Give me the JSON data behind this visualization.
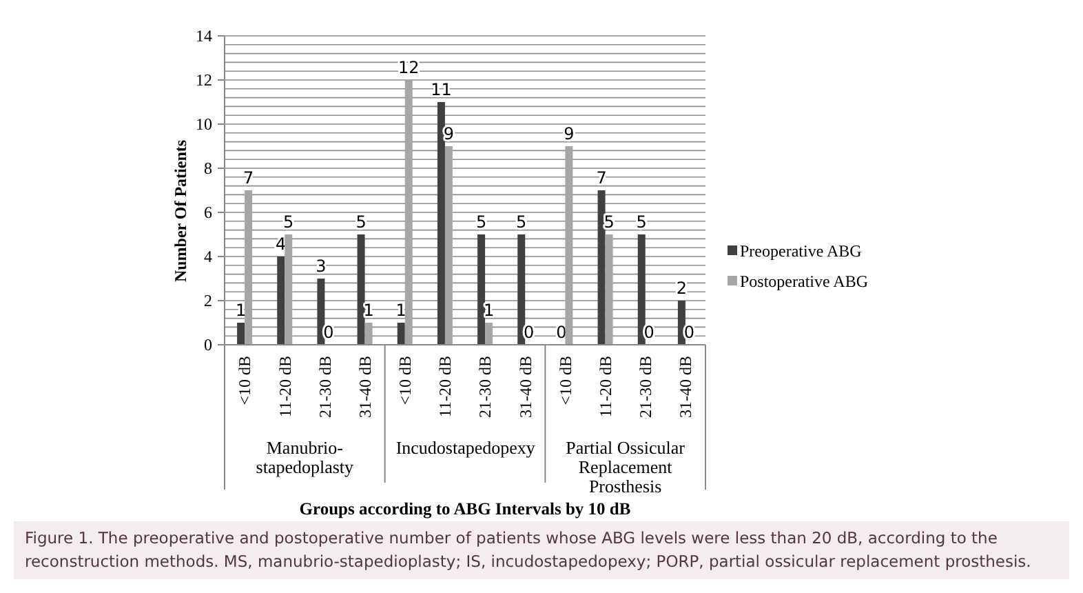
{
  "chart_data": {
    "type": "bar",
    "xlabel": "Groups according to ABG Intervals by 10 dB",
    "ylabel": "Number Of Patients",
    "categories": [
      "<10 dB",
      "11-20 dB",
      "21-30 dB",
      "31-40 dB",
      "<10 dB",
      "11-20 dB",
      "21-30 dB",
      "31-40 dB",
      "<10 dB",
      "11-20 dB",
      "21-30 dB",
      "31-40 dB"
    ],
    "series": [
      {
        "name": "Preoperative ABG",
        "color": "#404040",
        "values": [
          1,
          4,
          3,
          5,
          1,
          11,
          5,
          5,
          0,
          7,
          5,
          2
        ]
      },
      {
        "name": "Postoperative ABG",
        "color": "#a6a6a6",
        "values": [
          7,
          5,
          0,
          1,
          12,
          9,
          1,
          0,
          9,
          5,
          0,
          0
        ]
      }
    ],
    "ylim": [
      0,
      14
    ],
    "yticks": [
      0,
      {
        "value": 0.4,
        "label": null
      },
      {
        "value": 0.8,
        "label": null
      },
      {
        "value": 1.2,
        "label": null
      },
      {
        "value": 1.6,
        "label": null
      },
      2,
      {
        "value": 2.4,
        "label": null
      },
      {
        "value": 2.8,
        "label": null
      },
      {
        "value": 3.2,
        "label": null
      },
      {
        "value": 3.6,
        "label": null
      },
      4,
      {
        "value": 4.4,
        "label": null
      },
      {
        "value": 4.8,
        "label": null
      },
      {
        "value": 5.2,
        "label": null
      },
      {
        "value": 5.6,
        "label": null
      },
      6,
      {
        "value": 6.4,
        "label": null
      },
      {
        "value": 6.8,
        "label": null
      },
      {
        "value": 7.2,
        "label": null
      },
      {
        "value": 7.6,
        "label": null
      },
      8,
      {
        "value": 8.4,
        "label": null
      },
      {
        "value": 8.8,
        "label": null
      },
      {
        "value": 9.2,
        "label": null
      },
      {
        "value": 9.6,
        "label": null
      },
      10,
      {
        "value": 10.4,
        "label": null
      },
      {
        "value": 10.8,
        "label": null
      },
      {
        "value": 11.2,
        "label": null
      },
      {
        "value": 11.6,
        "label": null
      },
      12,
      {
        "value": 12.4,
        "label": null
      },
      {
        "value": 12.8,
        "label": null
      },
      {
        "value": 13.2,
        "label": null
      },
      {
        "value": 13.6,
        "label": null
      },
      14
    ],
    "grid": "y",
    "legend": "right",
    "data_labels": true,
    "annotations": [
      "Manubrio-stapedoplasty",
      "Incudostapedopexy",
      "Partial Ossicular Replacement Prosthesis",
      "Figure 1. The preoperative and postoperative number of patients whose ABG levels were less than 20 dB, according to the reconstruction methods. MS, manubrio-stapedioplasty; IS, incudostapedopexy; PORP, partial ossicular replacement prosthesis."
    ]
  }
}
